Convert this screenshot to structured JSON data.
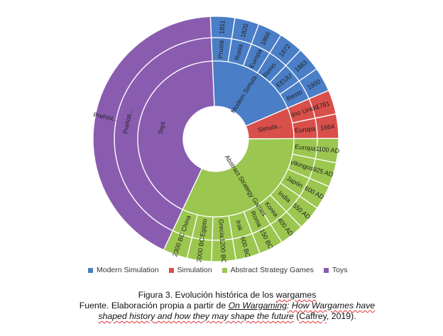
{
  "chart_data": {
    "type": "sunburst",
    "legend_position": "bottom",
    "series": [
      {
        "name": "Modern Simulation",
        "color": "#4a7ec6",
        "children": [
          {
            "label": "Modern Simula...",
            "children": [
              {
                "label": "Prusia",
                "years": [
                  "1811"
                ]
              },
              {
                "label": "Rusia",
                "years": [
                  "1820"
                ]
              },
              {
                "label": "Europa",
                "years": [
                  "1866"
                ]
              },
              {
                "label": "Reino...",
                "years": [
                  "1872"
                ]
              },
              {
                "label": "EEUU",
                "years": [
                  "1883"
                ]
              },
              {
                "label": "Resto",
                "years": [
                  "1900"
                ]
              }
            ]
          }
        ]
      },
      {
        "name": "Simulation",
        "color": "#d94f4a",
        "children": [
          {
            "label": "Simula...",
            "children": [
              {
                "label": "Reino Unido",
                "years": [
                  "1781"
                ]
              },
              {
                "label": "Europa",
                "years": [
                  "1664"
                ]
              }
            ]
          }
        ]
      },
      {
        "name": "Abstract Strategy Games",
        "color": "#9bc64f",
        "children": [
          {
            "label": "Abstract Strategy Games",
            "children": [
              {
                "label": "Europa",
                "years": [
                  "1100 AD"
                ]
              },
              {
                "label": "Vikingos",
                "years": [
                  "925 AD"
                ]
              },
              {
                "label": "Japón",
                "years": [
                  "600 AD"
                ]
              },
              {
                "label": "India",
                "years": [
                  "550 AD"
                ]
              },
              {
                "label": "Korea",
                "years": [
                  "400 AD"
                ]
              },
              {
                "label": "Roma",
                "years": [
                  "150 BC"
                ]
              },
              {
                "label": "Irak",
                "years": [
                  "600 BC"
                ]
              },
              {
                "label": "Grecia",
                "years": [
                  "1200 BC"
                ]
              },
              {
                "label": "Egipto",
                "years": [
                  "2000 BC"
                ]
              },
              {
                "label": "China",
                "years": [
                  "2300 BC"
                ]
              }
            ]
          }
        ]
      },
      {
        "name": "Toys",
        "color": "#8a5cb0",
        "children": [
          {
            "label": "Toys",
            "children": [
              {
                "label": "Prehist...",
                "years": [
                  "Prehist..."
                ]
              }
            ]
          }
        ]
      }
    ]
  },
  "caption": {
    "line1_prefix": "Figura 3. Evolución histórica de los ",
    "line1_term": "wargames",
    "line2_prefix": "Fuente. Elaboración propia a partir de ",
    "line2_title_a": "On Wargaming",
    "line2_title_b": ": How Wargames have",
    "line3_title": "shaped history",
    "line3_mid": " and how they may shape the future",
    "line3_open": " (",
    "line3_author": "Caffrey",
    "line3_suffix": ", 2019)."
  }
}
